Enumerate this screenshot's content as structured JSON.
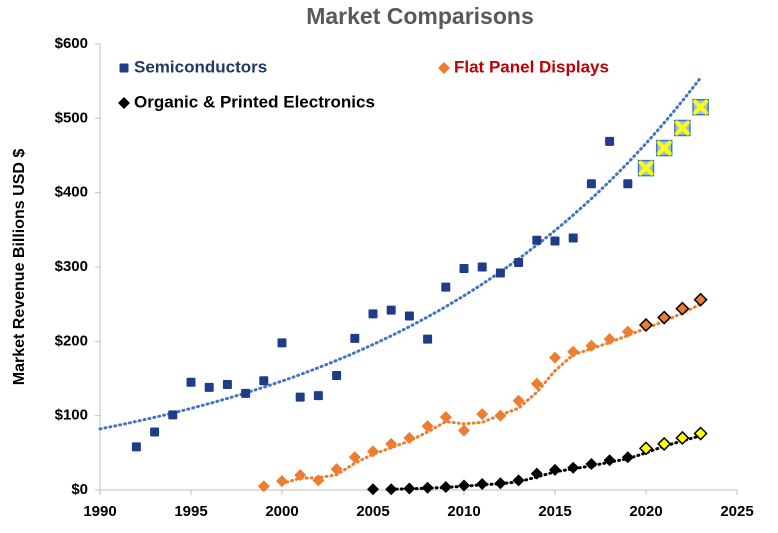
{
  "chart_data": {
    "type": "scatter",
    "title": "Market Comparisons",
    "y_label": "Market Revenue Billions USD $",
    "xlim": [
      1990,
      2025
    ],
    "xticks": [
      1990,
      1995,
      2000,
      2005,
      2010,
      2015,
      2020,
      2025
    ],
    "ylim": [
      0,
      600
    ],
    "yticks": [
      {
        "value": 0,
        "label": "$0"
      },
      {
        "value": 100,
        "label": "$100"
      },
      {
        "value": 200,
        "label": "$200"
      },
      {
        "value": 300,
        "label": "$300"
      },
      {
        "value": 400,
        "label": "$400"
      },
      {
        "value": 500,
        "label": "$500"
      },
      {
        "value": 600,
        "label": "$600"
      }
    ],
    "grid": false,
    "series": [
      {
        "name": "Semiconductors",
        "color": "#1f3c88",
        "legend_color": "#1f3864",
        "marker": "square",
        "x": [
          1992,
          1993,
          1994,
          1995,
          1996,
          1997,
          1998,
          1999,
          2000,
          2001,
          2002,
          2003,
          2004,
          2005,
          2006,
          2007,
          2008,
          2009,
          2010,
          2011,
          2012,
          2013,
          2014,
          2015,
          2016,
          2017,
          2018,
          2019
        ],
        "values": [
          58,
          78,
          101,
          145,
          138,
          142,
          130,
          147,
          198,
          125,
          127,
          154,
          204,
          237,
          242,
          234,
          203,
          273,
          298,
          300,
          292,
          306,
          336,
          335,
          339,
          412,
          469,
          412
        ]
      },
      {
        "color": "#ffff00",
        "edge": "#4472c4",
        "marker": "x-square",
        "x": [
          2020,
          2021,
          2022,
          2023
        ],
        "values": [
          433,
          460,
          487,
          515
        ]
      },
      {
        "name": "Flat Panel Displays",
        "color": "#ed7d31",
        "legend_color": "#c00000",
        "marker": "diamond",
        "x": [
          1999,
          2000,
          2001,
          2002,
          2003,
          2004,
          2005,
          2006,
          2007,
          2008,
          2009,
          2010,
          2011,
          2012,
          2013,
          2014,
          2015,
          2016,
          2017,
          2018,
          2019
        ],
        "values": [
          5,
          12,
          20,
          13,
          28,
          44,
          52,
          62,
          70,
          86,
          98,
          80,
          102,
          100,
          120,
          143,
          178,
          186,
          194,
          203,
          213
        ]
      },
      {
        "color": "#ed7d31",
        "edge": "#000000",
        "marker": "diamond",
        "x": [
          2020,
          2021,
          2022,
          2023
        ],
        "values": [
          222,
          232,
          244,
          256
        ]
      },
      {
        "name": "Organic & Printed Electronics",
        "color": "#000000",
        "legend_color": "#000000",
        "marker": "diamond",
        "x": [
          2005,
          2006,
          2007,
          2008,
          2009,
          2010,
          2011,
          2012,
          2013,
          2014,
          2015,
          2016,
          2017,
          2018,
          2019
        ],
        "values": [
          1,
          1,
          2,
          3,
          4,
          6,
          8,
          9,
          13,
          22,
          27,
          30,
          35,
          40,
          44
        ]
      },
      {
        "color": "#ffff00",
        "edge": "#000000",
        "marker": "diamond",
        "x": [
          2020,
          2021,
          2022,
          2023
        ],
        "values": [
          56,
          62,
          70,
          76
        ]
      }
    ]
  }
}
